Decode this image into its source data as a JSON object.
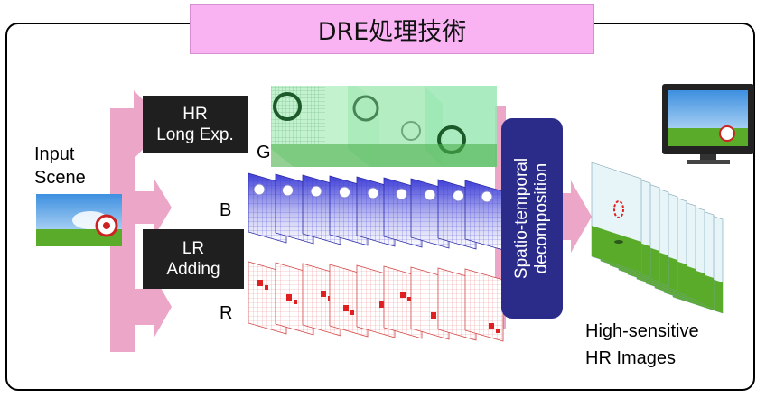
{
  "title": "DRE処理技術",
  "input": {
    "line1": "Input",
    "line2": "Scene"
  },
  "hr_box": {
    "line1": "HR",
    "line2": "Long Exp."
  },
  "lr_box": {
    "line1": "LR",
    "line2": "Adding"
  },
  "channels": {
    "g": "G",
    "b": "B",
    "r": "R"
  },
  "decomposition": {
    "line1": "Spatio-temporal",
    "line2": "decomposition"
  },
  "output": {
    "line1": "High-sensitive",
    "line2": "HR Images"
  },
  "colors": {
    "arrow": "#eba6c8",
    "title_bg": "#f9b3f3",
    "decomp_bg": "#2b2b8a",
    "green_frame": "#9be8b4",
    "blue_grid": "#3a3ad0",
    "red_grid": "#e05050"
  }
}
